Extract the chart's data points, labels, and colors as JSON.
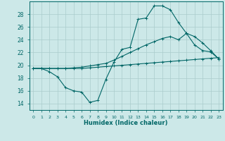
{
  "xlabel": "Humidex (Indice chaleur)",
  "bg_color": "#cce8e8",
  "grid_color": "#aacccc",
  "line_color": "#006666",
  "xlim": [
    -0.5,
    23.5
  ],
  "ylim": [
    13.0,
    30.0
  ],
  "xticks": [
    0,
    1,
    2,
    3,
    4,
    5,
    6,
    7,
    8,
    9,
    10,
    11,
    12,
    13,
    14,
    15,
    16,
    17,
    18,
    19,
    20,
    21,
    22,
    23
  ],
  "yticks": [
    14,
    16,
    18,
    20,
    22,
    24,
    26,
    28
  ],
  "line1_x": [
    0,
    1,
    2,
    3,
    4,
    5,
    6,
    7,
    8,
    9,
    10,
    11,
    12,
    13,
    14,
    15,
    16,
    17,
    18,
    19,
    20,
    21,
    22,
    23
  ],
  "line1_y": [
    19.5,
    19.5,
    19.0,
    18.2,
    16.5,
    16.0,
    15.8,
    14.2,
    14.5,
    17.8,
    20.5,
    22.5,
    22.8,
    27.2,
    27.4,
    29.3,
    29.3,
    28.7,
    26.7,
    25.0,
    23.2,
    22.3,
    22.1,
    21.0
  ],
  "line2_x": [
    0,
    1,
    2,
    3,
    4,
    5,
    6,
    7,
    8,
    9,
    10,
    11,
    12,
    13,
    14,
    15,
    16,
    17,
    18,
    19,
    20,
    21,
    22,
    23
  ],
  "line2_y": [
    19.5,
    19.5,
    19.5,
    19.5,
    19.5,
    19.5,
    19.5,
    19.6,
    19.7,
    19.8,
    19.9,
    20.0,
    20.1,
    20.2,
    20.3,
    20.4,
    20.5,
    20.6,
    20.7,
    20.8,
    20.9,
    21.0,
    21.1,
    21.2
  ],
  "line3_x": [
    0,
    1,
    2,
    3,
    4,
    5,
    6,
    7,
    8,
    9,
    10,
    11,
    12,
    13,
    14,
    15,
    16,
    17,
    18,
    19,
    20,
    21,
    22,
    23
  ],
  "line3_y": [
    19.5,
    19.5,
    19.5,
    19.5,
    19.5,
    19.6,
    19.7,
    19.9,
    20.1,
    20.3,
    20.8,
    21.4,
    22.0,
    22.6,
    23.2,
    23.7,
    24.2,
    24.5,
    24.0,
    25.0,
    24.5,
    23.5,
    22.3,
    21.0
  ]
}
